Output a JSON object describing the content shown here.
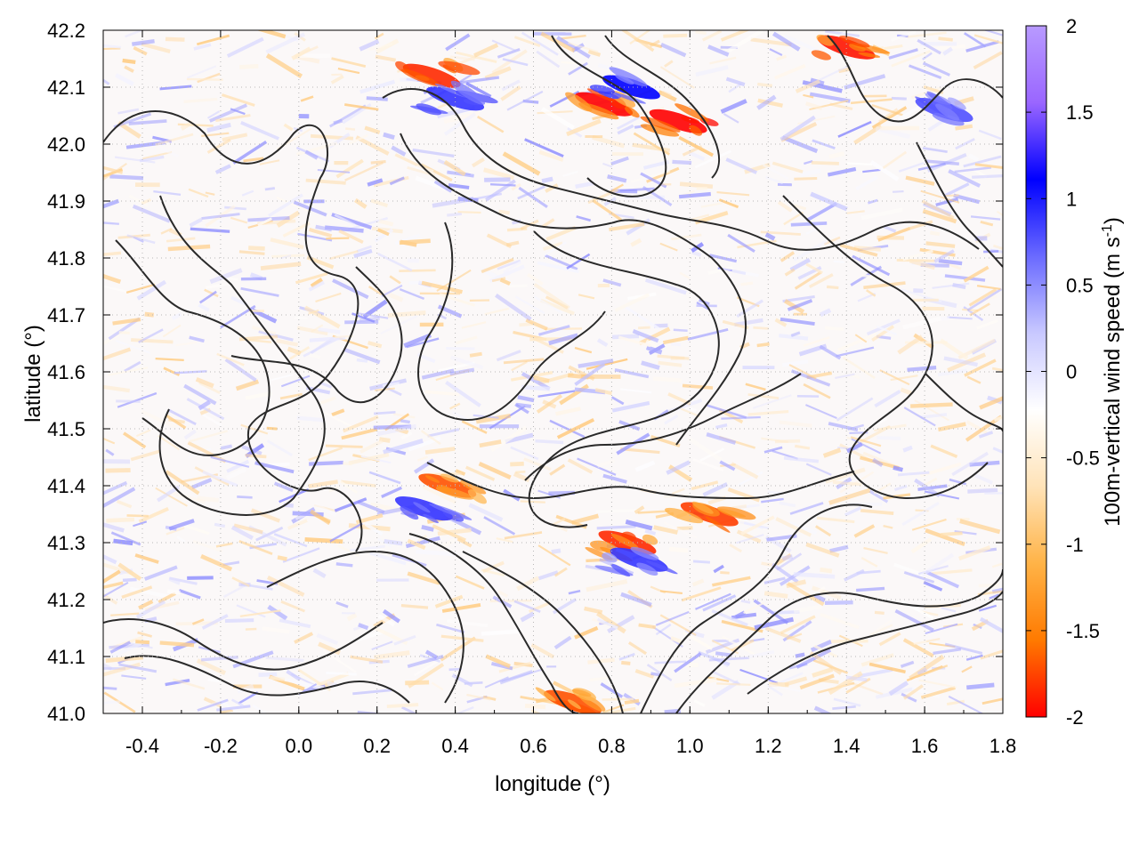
{
  "chart_data": {
    "type": "heatmap",
    "title": "",
    "xlabel": "longitude (°)",
    "ylabel": "latitude (°)",
    "xlim": [
      -0.5,
      1.8
    ],
    "ylim": [
      41.0,
      42.2
    ],
    "x_ticks": [
      "-0.4",
      "-0.2",
      "0.0",
      "0.2",
      "0.4",
      "0.6",
      "0.8",
      "1.0",
      "1.2",
      "1.4",
      "1.6",
      "1.8"
    ],
    "y_ticks": [
      "41.0",
      "41.1",
      "41.2",
      "41.3",
      "41.4",
      "41.5",
      "41.6",
      "41.7",
      "41.8",
      "41.9",
      "42.0",
      "42.1",
      "42.2"
    ],
    "grid": true,
    "colorbar": {
      "label_main": "100m-vertical wind speed (m s",
      "label_sup": "-1",
      "label_close": ")",
      "range": [
        -2,
        2
      ],
      "ticks": [
        "2",
        "1.5",
        "1",
        "0.5",
        "0",
        "-0.5",
        "-1",
        "-1.5",
        "-2"
      ],
      "colors": [
        "#ff0000",
        "#ff7a00",
        "#ffb347",
        "#ffe3b8",
        "#ffffff",
        "#c8c8ff",
        "#6a6aff",
        "#0000ff",
        "#9a66ff",
        "#b89aff"
      ]
    },
    "features": [
      {
        "kind": "updraft",
        "lon": 0.78,
        "lat": 42.07,
        "value": -2.0
      },
      {
        "kind": "updraft",
        "lon": 0.97,
        "lat": 42.04,
        "value": -2.0
      },
      {
        "kind": "updraft",
        "lon": 1.4,
        "lat": 42.17,
        "value": -1.9
      },
      {
        "kind": "updraft",
        "lon": 0.34,
        "lat": 42.12,
        "value": -1.8
      },
      {
        "kind": "updraft",
        "lon": 0.84,
        "lat": 41.3,
        "value": -1.8
      },
      {
        "kind": "updraft",
        "lon": 1.05,
        "lat": 41.35,
        "value": -1.7
      },
      {
        "kind": "updraft",
        "lon": 0.38,
        "lat": 41.4,
        "value": -1.6
      },
      {
        "kind": "updraft",
        "lon": 0.7,
        "lat": 41.02,
        "value": -1.6
      },
      {
        "kind": "downdraft",
        "lon": 0.85,
        "lat": 42.1,
        "value": 1.2
      },
      {
        "kind": "downdraft",
        "lon": 0.4,
        "lat": 42.08,
        "value": 1.0
      },
      {
        "kind": "downdraft",
        "lon": 0.32,
        "lat": 41.36,
        "value": 1.0
      },
      {
        "kind": "downdraft",
        "lon": 0.87,
        "lat": 41.27,
        "value": 1.0
      },
      {
        "kind": "downdraft",
        "lon": 1.65,
        "lat": 42.06,
        "value": 0.9
      }
    ]
  }
}
